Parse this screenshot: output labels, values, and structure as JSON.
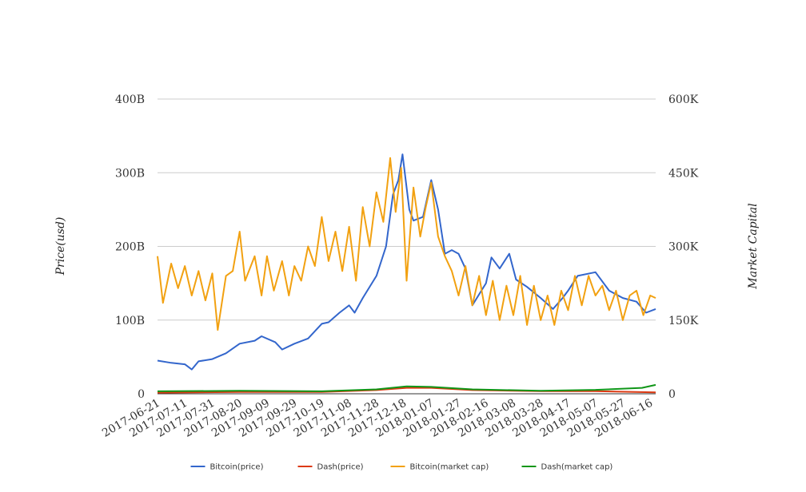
{
  "chart_data": {
    "type": "line",
    "title": "",
    "xlabel": "",
    "ylabel": "Price(usd)",
    "y2label": "Market Capital",
    "ylim": [
      0,
      400000000000
    ],
    "y2lim": [
      0,
      600000
    ],
    "yticks": [
      {
        "value": 0,
        "label": "0"
      },
      {
        "value": 100000000000,
        "label": "100B"
      },
      {
        "value": 200000000000,
        "label": "200B"
      },
      {
        "value": 300000000000,
        "label": "300B"
      },
      {
        "value": 400000000000,
        "label": "400B"
      }
    ],
    "y2ticks": [
      {
        "value": 0,
        "label": "0"
      },
      {
        "value": 150000,
        "label": "150K"
      },
      {
        "value": 300000,
        "label": "300K"
      },
      {
        "value": 450000,
        "label": "450K"
      },
      {
        "value": 600000,
        "label": "600K"
      }
    ],
    "xlim": [
      "2017-06-21",
      "2018-06-20"
    ],
    "xticks": [
      "2017-06-21",
      "2017-07-11",
      "2017-07-31",
      "2017-08-20",
      "2017-09-09",
      "2017-09-29",
      "2017-10-19",
      "2017-11-08",
      "2017-11-28",
      "2017-12-18",
      "2018-01-07",
      "2018-01-27",
      "2018-02-16",
      "2018-03-08",
      "2018-03-28",
      "2018-04-17",
      "2018-05-07",
      "2018-05-27",
      "2018-06-16"
    ],
    "grid": true,
    "legend": "bottom",
    "series": [
      {
        "name": "Bitcoin(price)",
        "color": "#3366cc",
        "axis": "left",
        "x": [
          "2017-06-21",
          "2017-07-01",
          "2017-07-11",
          "2017-07-16",
          "2017-07-21",
          "2017-07-31",
          "2017-08-10",
          "2017-08-20",
          "2017-08-31",
          "2017-09-05",
          "2017-09-15",
          "2017-09-20",
          "2017-09-29",
          "2017-10-09",
          "2017-10-19",
          "2017-10-24",
          "2017-11-01",
          "2017-11-08",
          "2017-11-12",
          "2017-11-18",
          "2017-11-28",
          "2017-12-05",
          "2017-12-10",
          "2017-12-14",
          "2017-12-17",
          "2017-12-22",
          "2017-12-25",
          "2018-01-01",
          "2018-01-07",
          "2018-01-12",
          "2018-01-17",
          "2018-01-22",
          "2018-01-27",
          "2018-02-01",
          "2018-02-06",
          "2018-02-16",
          "2018-02-20",
          "2018-02-26",
          "2018-03-05",
          "2018-03-10",
          "2018-03-18",
          "2018-03-28",
          "2018-04-06",
          "2018-04-13",
          "2018-04-17",
          "2018-04-24",
          "2018-05-07",
          "2018-05-17",
          "2018-05-27",
          "2018-06-06",
          "2018-06-13",
          "2018-06-20"
        ],
        "y": [
          45000000000,
          42000000000,
          40000000000,
          33000000000,
          44000000000,
          47000000000,
          55000000000,
          68000000000,
          72000000000,
          78000000000,
          70000000000,
          60000000000,
          68000000000,
          75000000000,
          95000000000,
          97000000000,
          110000000000,
          120000000000,
          110000000000,
          130000000000,
          160000000000,
          200000000000,
          270000000000,
          290000000000,
          325000000000,
          250000000000,
          235000000000,
          240000000000,
          290000000000,
          250000000000,
          190000000000,
          195000000000,
          190000000000,
          170000000000,
          120000000000,
          150000000000,
          185000000000,
          170000000000,
          190000000000,
          155000000000,
          145000000000,
          130000000000,
          115000000000,
          130000000000,
          140000000000,
          160000000000,
          165000000000,
          140000000000,
          130000000000,
          125000000000,
          110000000000,
          115000000000
        ]
      },
      {
        "name": "Dash(price)",
        "color": "#dc3912",
        "axis": "left",
        "x": [
          "2017-06-21",
          "2017-08-20",
          "2017-10-19",
          "2017-11-28",
          "2017-12-20",
          "2018-01-07",
          "2018-02-06",
          "2018-03-28",
          "2018-05-07",
          "2018-06-20"
        ],
        "y": [
          1500000000,
          2500000000,
          2500000000,
          5000000000,
          8000000000,
          8000000000,
          5000000000,
          3500000000,
          3500000000,
          2000000000
        ]
      },
      {
        "name": "Bitcoin(market cap)",
        "color": "#f2a111",
        "axis": "right",
        "x": [
          "2017-06-21",
          "2017-06-25",
          "2017-07-01",
          "2017-07-06",
          "2017-07-11",
          "2017-07-16",
          "2017-07-21",
          "2017-07-26",
          "2017-07-31",
          "2017-08-04",
          "2017-08-10",
          "2017-08-15",
          "2017-08-20",
          "2017-08-24",
          "2017-08-31",
          "2017-09-05",
          "2017-09-09",
          "2017-09-14",
          "2017-09-20",
          "2017-09-25",
          "2017-09-29",
          "2017-10-04",
          "2017-10-09",
          "2017-10-14",
          "2017-10-19",
          "2017-10-24",
          "2017-10-29",
          "2017-11-03",
          "2017-11-08",
          "2017-11-13",
          "2017-11-18",
          "2017-11-23",
          "2017-11-28",
          "2017-12-03",
          "2017-12-08",
          "2017-12-12",
          "2017-12-16",
          "2017-12-20",
          "2017-12-25",
          "2017-12-30",
          "2018-01-03",
          "2018-01-07",
          "2018-01-12",
          "2018-01-17",
          "2018-01-22",
          "2018-01-27",
          "2018-02-01",
          "2018-02-06",
          "2018-02-11",
          "2018-02-16",
          "2018-02-21",
          "2018-02-26",
          "2018-03-03",
          "2018-03-08",
          "2018-03-13",
          "2018-03-18",
          "2018-03-23",
          "2018-03-28",
          "2018-04-02",
          "2018-04-07",
          "2018-04-12",
          "2018-04-17",
          "2018-04-22",
          "2018-04-27",
          "2018-05-02",
          "2018-05-07",
          "2018-05-12",
          "2018-05-17",
          "2018-05-22",
          "2018-05-27",
          "2018-06-01",
          "2018-06-06",
          "2018-06-11",
          "2018-06-16",
          "2018-06-20"
        ],
        "y": [
          280000,
          185000,
          265000,
          215000,
          260000,
          200000,
          250000,
          190000,
          245000,
          130000,
          240000,
          250000,
          330000,
          230000,
          280000,
          200000,
          280000,
          210000,
          270000,
          200000,
          260000,
          230000,
          300000,
          260000,
          360000,
          270000,
          330000,
          250000,
          340000,
          230000,
          380000,
          300000,
          410000,
          350000,
          480000,
          370000,
          460000,
          230000,
          420000,
          320000,
          380000,
          430000,
          320000,
          280000,
          250000,
          200000,
          260000,
          180000,
          240000,
          160000,
          230000,
          150000,
          220000,
          160000,
          240000,
          140000,
          220000,
          150000,
          200000,
          140000,
          210000,
          170000,
          240000,
          180000,
          240000,
          200000,
          220000,
          170000,
          210000,
          150000,
          200000,
          210000,
          160000,
          200000,
          195000
        ]
      },
      {
        "name": "Dash(market cap)",
        "color": "#109618",
        "axis": "right",
        "x": [
          "2017-06-21",
          "2017-08-20",
          "2017-10-19",
          "2017-11-28",
          "2017-12-20",
          "2018-01-07",
          "2018-02-06",
          "2018-03-28",
          "2018-05-07",
          "2018-06-10",
          "2018-06-20"
        ],
        "y": [
          5000,
          6000,
          5000,
          9000,
          15000,
          14000,
          9000,
          6000,
          8000,
          12000,
          18000
        ]
      }
    ]
  }
}
